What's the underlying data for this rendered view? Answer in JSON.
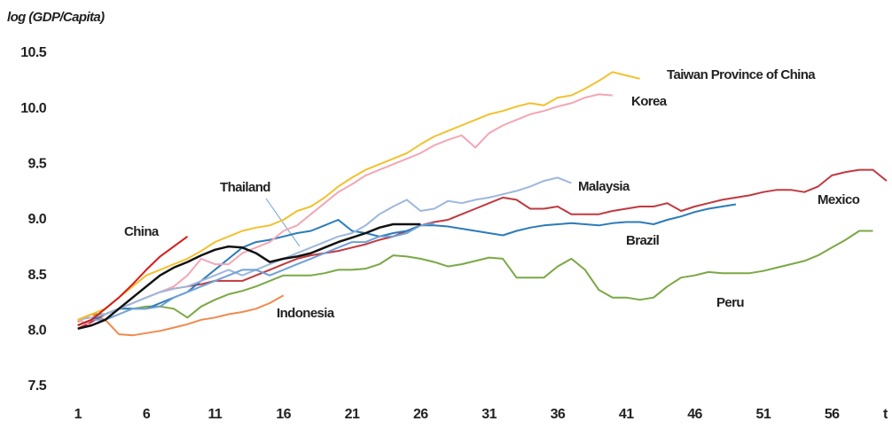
{
  "chart_data": {
    "type": "line",
    "y_label": "log (GDP/Capita)",
    "x_label": "t",
    "x": [
      1,
      2,
      3,
      4,
      5,
      6,
      7,
      8,
      9,
      10,
      11,
      12,
      13,
      14,
      15,
      16,
      17,
      18,
      19,
      20,
      21,
      22,
      23,
      24,
      25,
      26,
      27,
      28,
      29,
      30,
      31,
      32,
      33,
      34,
      35,
      36,
      37,
      38,
      39,
      40,
      41,
      42,
      43,
      44,
      45,
      46,
      47,
      48,
      49,
      50,
      51,
      52,
      53,
      54,
      55,
      56,
      57,
      58,
      59,
      60
    ],
    "xlim": [
      0.5,
      60
    ],
    "xticks": [
      1,
      6,
      11,
      16,
      21,
      26,
      31,
      36,
      41,
      46,
      51,
      56
    ],
    "ylim": [
      7.5,
      10.5
    ],
    "yticks": [
      {
        "value": 7.5,
        "label": "7.5"
      },
      {
        "value": 8,
        "label": "8.0"
      },
      {
        "value": 8.5,
        "label": "8.5"
      },
      {
        "value": 9,
        "label": "9.0"
      },
      {
        "value": 9.5,
        "label": "9.5"
      },
      {
        "value": 10,
        "label": "10.0"
      },
      {
        "value": 10.5,
        "label": "10.5"
      }
    ],
    "grid": false,
    "series": [
      {
        "name": "Peru",
        "color": "#7aa843",
        "values": [
          8.1,
          8.15,
          8.15,
          8.2,
          8.2,
          8.22,
          8.22,
          8.2,
          8.12,
          8.22,
          8.28,
          8.33,
          8.36,
          8.4,
          8.45,
          8.5,
          8.5,
          8.5,
          8.52,
          8.55,
          8.55,
          8.56,
          8.6,
          8.68,
          8.67,
          8.65,
          8.62,
          8.58,
          8.6,
          8.63,
          8.66,
          8.65,
          8.48,
          8.48,
          8.48,
          8.58,
          8.65,
          8.55,
          8.37,
          8.3,
          8.3,
          8.28,
          8.3,
          8.4,
          8.48,
          8.5,
          8.53,
          8.52,
          8.52,
          8.52,
          8.54,
          8.57,
          8.6,
          8.63,
          8.68,
          8.75,
          8.82,
          8.9,
          8.9,
          null
        ]
      },
      {
        "name": "Indonesia",
        "color": "#f08a4b",
        "values": [
          8.08,
          8.15,
          8.1,
          7.97,
          7.96,
          7.98,
          8.0,
          8.03,
          8.06,
          8.1,
          8.12,
          8.15,
          8.17,
          8.2,
          8.25,
          8.32,
          null,
          null,
          null,
          null,
          null,
          null,
          null,
          null,
          null,
          null,
          null,
          null,
          null,
          null,
          null,
          null,
          null,
          null,
          null,
          null,
          null,
          null,
          null,
          null,
          null,
          null,
          null,
          null,
          null,
          null,
          null,
          null,
          null,
          null,
          null,
          null,
          null,
          null,
          null,
          null,
          null,
          null,
          null,
          null
        ]
      },
      {
        "name": "Mexico",
        "color": "#c0393f",
        "values": [
          8.02,
          8.08,
          8.15,
          8.2,
          8.25,
          8.3,
          8.35,
          8.38,
          8.4,
          8.42,
          8.45,
          8.45,
          8.45,
          8.5,
          8.55,
          8.6,
          8.65,
          8.68,
          8.7,
          8.72,
          8.75,
          8.78,
          8.82,
          8.85,
          8.9,
          8.95,
          8.98,
          9.0,
          9.05,
          9.1,
          9.15,
          9.2,
          9.18,
          9.1,
          9.1,
          9.12,
          9.05,
          9.05,
          9.05,
          9.08,
          9.1,
          9.12,
          9.12,
          9.15,
          9.08,
          9.12,
          9.15,
          9.18,
          9.2,
          9.22,
          9.25,
          9.27,
          9.27,
          9.25,
          9.3,
          9.4,
          9.43,
          9.45,
          9.45,
          9.35
        ]
      },
      {
        "name": "Brazil",
        "color": "#2b7bb9",
        "values": [
          8.05,
          8.1,
          8.15,
          8.2,
          8.2,
          8.2,
          8.25,
          8.3,
          8.35,
          8.45,
          8.55,
          8.65,
          8.75,
          8.8,
          8.82,
          8.85,
          8.88,
          8.9,
          8.95,
          9.0,
          8.9,
          8.88,
          8.85,
          8.88,
          8.9,
          8.95,
          8.95,
          8.94,
          8.92,
          8.9,
          8.88,
          8.86,
          8.9,
          8.93,
          8.95,
          8.96,
          8.97,
          8.96,
          8.95,
          8.97,
          8.98,
          8.98,
          8.96,
          9.0,
          9.03,
          9.07,
          9.1,
          9.12,
          9.14,
          null,
          null,
          null,
          null,
          null,
          null,
          null,
          null,
          null,
          null,
          null
        ]
      },
      {
        "name": "Korea",
        "color": "#f2a7b5",
        "values": [
          8.1,
          8.05,
          8.1,
          8.2,
          8.25,
          8.3,
          8.35,
          8.4,
          8.5,
          8.65,
          8.6,
          8.6,
          8.7,
          8.75,
          8.8,
          8.9,
          8.95,
          9.05,
          9.15,
          9.25,
          9.32,
          9.4,
          9.45,
          9.5,
          9.55,
          9.6,
          9.67,
          9.72,
          9.76,
          9.65,
          9.78,
          9.85,
          9.9,
          9.95,
          9.98,
          10.02,
          10.05,
          10.1,
          10.13,
          10.12,
          null,
          null,
          null,
          null,
          null,
          null,
          null,
          null,
          null,
          null,
          null,
          null,
          null,
          null,
          null,
          null,
          null,
          null,
          null,
          null
        ]
      },
      {
        "name": "Malaysia",
        "color": "#9db7dd",
        "values": [
          8.1,
          8.12,
          8.15,
          8.2,
          8.25,
          8.3,
          8.35,
          8.38,
          8.4,
          8.45,
          8.5,
          8.55,
          8.5,
          8.55,
          8.6,
          8.65,
          8.7,
          8.75,
          8.8,
          8.85,
          8.88,
          8.95,
          9.05,
          9.12,
          9.18,
          9.08,
          9.1,
          9.17,
          9.15,
          9.18,
          9.2,
          9.23,
          9.26,
          9.3,
          9.35,
          9.38,
          9.33,
          null,
          null,
          null,
          null,
          null,
          null,
          null,
          null,
          null,
          null,
          null,
          null,
          null,
          null,
          null,
          null,
          null,
          null,
          null,
          null,
          null,
          null,
          null
        ]
      },
      {
        "name": "Thailand",
        "color": "#6fa0d6",
        "values": [
          8.05,
          8.1,
          8.1,
          8.15,
          8.2,
          8.2,
          8.22,
          8.3,
          8.35,
          8.4,
          8.45,
          8.5,
          8.55,
          8.55,
          8.5,
          8.55,
          8.6,
          8.65,
          8.7,
          8.75,
          8.8,
          8.8,
          8.85,
          8.85,
          8.88,
          8.95,
          8.97,
          null,
          null,
          null,
          null,
          null,
          null,
          null,
          null,
          null,
          null,
          null,
          null,
          null,
          null,
          null,
          null,
          null,
          null,
          null,
          null,
          null,
          null,
          null,
          null,
          null,
          null,
          null,
          null,
          null,
          null,
          null,
          null,
          null
        ]
      },
      {
        "name": "Taiwan Province of China",
        "color": "#f2c12e",
        "values": [
          8.1,
          8.15,
          8.2,
          8.3,
          8.4,
          8.5,
          8.55,
          8.6,
          8.65,
          8.72,
          8.8,
          8.85,
          8.9,
          8.93,
          8.95,
          9.0,
          9.08,
          9.12,
          9.2,
          9.3,
          9.38,
          9.45,
          9.5,
          9.55,
          9.6,
          9.68,
          9.75,
          9.8,
          9.85,
          9.9,
          9.95,
          9.98,
          10.02,
          10.05,
          10.03,
          10.1,
          10.12,
          10.18,
          10.25,
          10.33,
          10.3,
          10.27,
          null,
          null,
          null,
          null,
          null,
          null,
          null,
          null,
          null,
          null,
          null,
          null,
          null,
          null,
          null,
          null,
          null,
          null
        ]
      },
      {
        "color": "#111111",
        "values": [
          8.02,
          8.05,
          8.1,
          8.2,
          8.3,
          8.4,
          8.5,
          8.57,
          8.62,
          8.68,
          8.73,
          8.76,
          8.75,
          8.7,
          8.62,
          8.65,
          8.67,
          8.7,
          8.75,
          8.8,
          8.84,
          8.88,
          8.93,
          8.96,
          8.96,
          8.96,
          null,
          null,
          null,
          null,
          null,
          null,
          null,
          null,
          null,
          null,
          null,
          null,
          null,
          null,
          null,
          null,
          null,
          null,
          null,
          null,
          null,
          null,
          null,
          null,
          null,
          null,
          null,
          null,
          null,
          null,
          null,
          null,
          null,
          null
        ]
      },
      {
        "name": "China",
        "color": "#d7191c",
        "values": [
          8.05,
          8.1,
          8.2,
          8.3,
          8.42,
          8.55,
          8.67,
          8.76,
          8.85,
          null,
          null,
          null,
          null,
          null,
          null,
          null,
          null,
          null,
          null,
          null,
          null,
          null,
          null,
          null,
          null,
          null,
          null,
          null,
          null,
          null,
          null,
          null,
          null,
          null,
          null,
          null,
          null,
          null,
          null,
          null,
          null,
          null,
          null,
          null,
          null,
          null,
          null,
          null,
          null,
          null,
          null,
          null,
          null,
          null,
          null,
          null,
          null,
          null,
          null,
          null
        ]
      }
    ]
  }
}
